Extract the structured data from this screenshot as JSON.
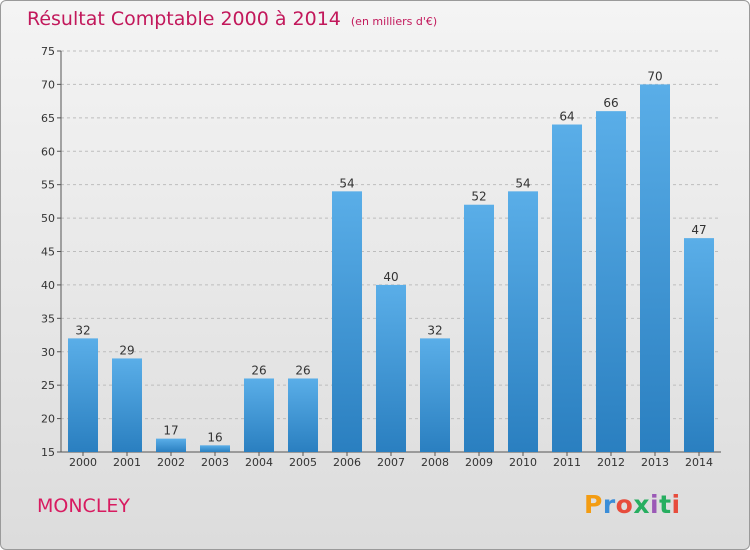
{
  "chart_data": {
    "type": "bar",
    "title": "Résultat Comptable 2000 à 2014",
    "unit_note": "(en milliers d'€)",
    "categories": [
      "2000",
      "2001",
      "2002",
      "2003",
      "2004",
      "2005",
      "2006",
      "2007",
      "2008",
      "2009",
      "2010",
      "2011",
      "2012",
      "2013",
      "2014"
    ],
    "values": [
      32,
      29,
      17,
      16,
      26,
      26,
      54,
      40,
      32,
      52,
      54,
      64,
      66,
      70,
      47
    ],
    "ylim": [
      15,
      75
    ],
    "yticks": [
      15,
      20,
      25,
      30,
      35,
      40,
      45,
      50,
      55,
      60,
      65,
      70,
      75
    ],
    "grid": true,
    "bar_color_top": "#5aaee8",
    "bar_color_bottom": "#2a7fc0"
  },
  "footer": {
    "town": "MONCLEY",
    "logo_text": "Proxiti"
  },
  "colors": {
    "title": "#c2185b",
    "town": "#d81b60"
  }
}
